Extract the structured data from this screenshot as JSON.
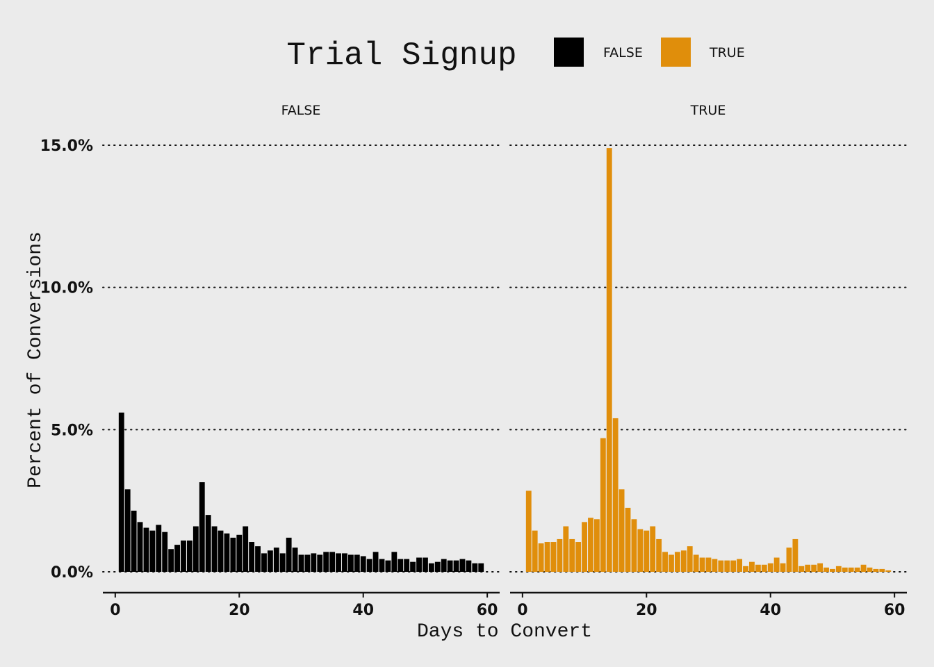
{
  "chart_data": {
    "type": "bar",
    "legend": {
      "title": "Trial Signup",
      "placement": "top",
      "entries": [
        {
          "label": "FALSE",
          "color": "#000000"
        },
        {
          "label": "TRUE",
          "color": "#E08E0B"
        }
      ]
    },
    "xlabel": "Days to Convert",
    "ylabel": "Percent of Conversions",
    "xlim": [
      -2,
      62
    ],
    "ylim": [
      0,
      15
    ],
    "xticks": [
      0,
      20,
      40,
      60
    ],
    "xtick_labels": [
      "0",
      "20",
      "40",
      "60"
    ],
    "yticks": [
      0,
      5,
      10,
      15
    ],
    "ytick_labels": [
      "0.0%",
      "5.0%",
      "10.0%",
      "15.0%"
    ],
    "grid": "horizontal dotted",
    "panels": [
      {
        "strip_label": "FALSE",
        "color": "#000000",
        "x": [
          1,
          2,
          3,
          4,
          5,
          6,
          7,
          8,
          9,
          10,
          11,
          12,
          13,
          14,
          15,
          16,
          17,
          18,
          19,
          20,
          21,
          22,
          23,
          24,
          25,
          26,
          27,
          28,
          29,
          30,
          31,
          32,
          33,
          34,
          35,
          36,
          37,
          38,
          39,
          40,
          41,
          42,
          43,
          44,
          45,
          46,
          47,
          48,
          49,
          50,
          51,
          52,
          53,
          54,
          55,
          56,
          57,
          58,
          59
        ],
        "values": [
          5.6,
          2.9,
          2.15,
          1.75,
          1.55,
          1.45,
          1.65,
          1.4,
          0.8,
          0.95,
          1.1,
          1.1,
          1.6,
          3.15,
          2.0,
          1.6,
          1.45,
          1.35,
          1.2,
          1.3,
          1.6,
          1.05,
          0.9,
          0.65,
          0.75,
          0.85,
          0.65,
          1.2,
          0.85,
          0.6,
          0.6,
          0.65,
          0.6,
          0.7,
          0.7,
          0.65,
          0.65,
          0.6,
          0.6,
          0.55,
          0.45,
          0.7,
          0.45,
          0.4,
          0.7,
          0.45,
          0.45,
          0.35,
          0.5,
          0.5,
          0.3,
          0.35,
          0.45,
          0.4,
          0.4,
          0.45,
          0.4,
          0.3,
          0.3
        ]
      },
      {
        "strip_label": "TRUE",
        "color": "#E08E0B",
        "x": [
          1,
          2,
          3,
          4,
          5,
          6,
          7,
          8,
          9,
          10,
          11,
          12,
          13,
          14,
          15,
          16,
          17,
          18,
          19,
          20,
          21,
          22,
          23,
          24,
          25,
          26,
          27,
          28,
          29,
          30,
          31,
          32,
          33,
          34,
          35,
          36,
          37,
          38,
          39,
          40,
          41,
          42,
          43,
          44,
          45,
          46,
          47,
          48,
          49,
          50,
          51,
          52,
          53,
          54,
          55,
          56,
          57,
          58,
          59
        ],
        "values": [
          2.85,
          1.45,
          1.0,
          1.05,
          1.05,
          1.15,
          1.6,
          1.15,
          1.05,
          1.75,
          1.9,
          1.85,
          4.7,
          14.9,
          5.4,
          2.9,
          2.25,
          1.85,
          1.5,
          1.45,
          1.6,
          1.15,
          0.7,
          0.6,
          0.7,
          0.75,
          0.9,
          0.6,
          0.5,
          0.5,
          0.45,
          0.4,
          0.4,
          0.4,
          0.45,
          0.2,
          0.35,
          0.25,
          0.25,
          0.3,
          0.5,
          0.3,
          0.85,
          1.15,
          0.2,
          0.25,
          0.25,
          0.3,
          0.15,
          0.1,
          0.2,
          0.15,
          0.15,
          0.15,
          0.25,
          0.15,
          0.1,
          0.1,
          0.05
        ]
      }
    ]
  }
}
